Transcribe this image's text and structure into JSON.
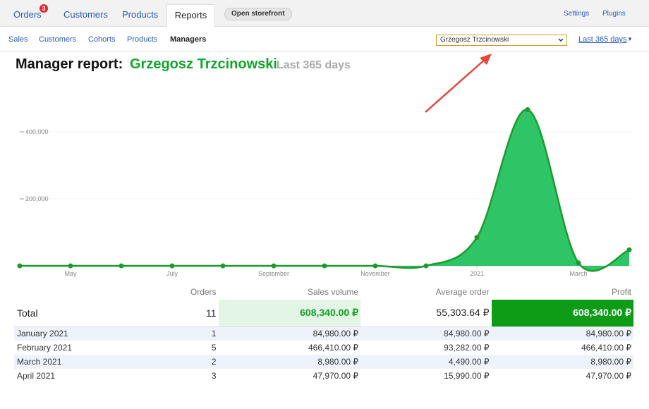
{
  "nav": {
    "tabs": [
      "Orders",
      "Customers",
      "Products",
      "Reports"
    ],
    "badge": "3",
    "button": "Open storefront",
    "links": [
      "Settings",
      "Plugins"
    ]
  },
  "subnav": {
    "tabs": [
      "Sales",
      "Customers",
      "Cohorts",
      "Products",
      "Managers"
    ],
    "manager_select": "Grzegosz Trzcinowski",
    "period": "Last 365 days"
  },
  "header": {
    "title": "Manager report:",
    "manager": "Grzegosz Trzcinowski",
    "period": "Last 365 days"
  },
  "chart_data": {
    "type": "area",
    "categories": [
      null,
      "May",
      null,
      "July",
      null,
      "September",
      null,
      "November",
      null,
      "2021",
      null,
      "March",
      null
    ],
    "values": [
      0,
      0,
      0,
      0,
      0,
      0,
      0,
      0,
      0,
      84980,
      466410,
      8980,
      47970
    ],
    "color": "#2dc565",
    "line_color": "#1f9a2e",
    "ylim": [
      0,
      520000
    ],
    "yticks": [
      {
        "value": 200000,
        "label": "200,000"
      },
      {
        "value": 400000,
        "label": "400,000"
      }
    ],
    "grid": true
  },
  "table": {
    "columns": [
      "Orders",
      "Sales volume",
      "Average order",
      "Profit"
    ],
    "total": [
      "Total",
      "11",
      "608,340.00 ₽",
      "55,303.64 ₽",
      "608,340.00 ₽"
    ],
    "rows": [
      [
        "January 2021",
        "1",
        "84,980.00 ₽",
        "84,980.00 ₽",
        "84,980.00 ₽"
      ],
      [
        "February 2021",
        "5",
        "466,410.00 ₽",
        "93,282.00 ₽",
        "466,410.00 ₽"
      ],
      [
        "March 2021",
        "2",
        "8,980.00 ₽",
        "4,490.00 ₽",
        "8,980.00 ₽"
      ],
      [
        "April 2021",
        "3",
        "47,970.00 ₽",
        "15,990.00 ₽",
        "47,970.00 ₽"
      ]
    ]
  }
}
